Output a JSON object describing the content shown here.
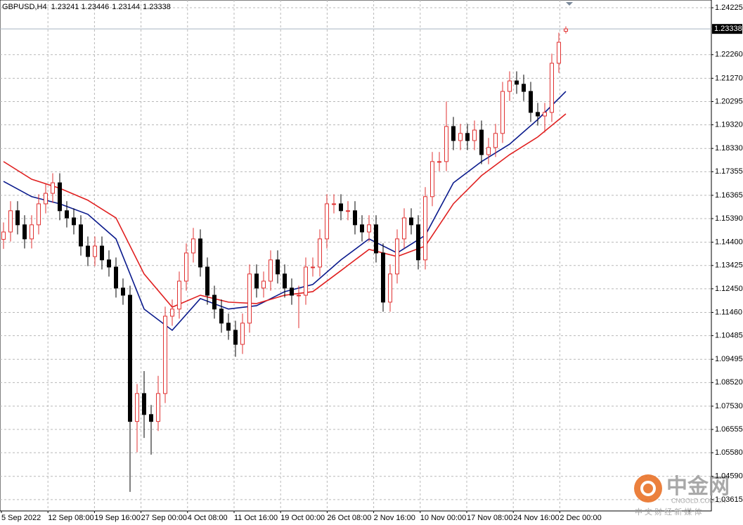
{
  "chart_data": {
    "type": "candlestick",
    "title": "GBPUSD,H4",
    "up_color": "#e03030",
    "down_color": "#000000",
    "grid": true,
    "ylim": [
      1.0314,
      1.2455
    ],
    "yticks": [
      1.24225,
      {
        "value": 1.2226,
        "label": "1.22260"
      },
      {
        "value": 1.2127,
        "label": "1.21270"
      },
      1.20295,
      {
        "value": 1.1932,
        "label": "1.19320"
      },
      {
        "value": 1.1833,
        "label": "1.18330"
      },
      1.17355,
      1.16365,
      {
        "value": 1.1539,
        "label": "1.15390"
      },
      {
        "value": 1.144,
        "label": "1.14400"
      },
      1.13425,
      {
        "value": 1.1245,
        "label": "1.12450"
      },
      {
        "value": 1.1146,
        "label": "1.11460"
      },
      1.10485,
      1.09495,
      {
        "value": 1.0852,
        "label": "1.08520"
      },
      {
        "value": 1.0753,
        "label": "1.07530"
      },
      1.06555,
      {
        "value": 1.0558,
        "label": "1.05580"
      },
      {
        "value": 1.0459,
        "label": "1.04590"
      },
      1.03615
    ],
    "x_labels": [
      "5 Sep 2022",
      "12 Sep 08:00",
      "19 Sep 16:00",
      "27 Sep 00:00",
      "4 Oct 08:00",
      "11 Oct 16:00",
      "19 Oct 00:00",
      "26 Oct 08:00",
      "2 Nov 16:00",
      "10 Nov 00:00",
      "17 Nov 08:00",
      "24 Nov 16:00",
      "2 Dec 00:00"
    ],
    "current_price": 1.23338,
    "open": [
      1.1452,
      1.1483,
      1.1572,
      1.1513,
      1.1454,
      1.1513,
      1.1601,
      1.1645,
      1.1689,
      1.1572,
      1.1542,
      1.1513,
      1.1424,
      1.138,
      1.1424,
      1.1366,
      1.1336,
      1.1248,
      1.1218,
      1.0689,
      1.0806,
      1.0718,
      1.0689,
      1.0806,
      1.113,
      1.116,
      1.1277,
      1.1395,
      1.1454,
      1.1336,
      1.1218,
      1.116,
      1.1101,
      1.1071,
      1.1012,
      1.1101,
      1.1307,
      1.1248,
      1.1277,
      1.1366,
      1.1307,
      1.1248,
      1.1218,
      1.1218,
      1.1336,
      1.1336,
      1.1454,
      1.1601,
      1.1601,
      1.1572,
      1.1572,
      1.1513,
      1.1483,
      1.1513,
      1.1395,
      1.1189,
      1.1307,
      1.1454,
      1.1542,
      1.1513,
      1.1366,
      1.1631,
      1.1778,
      1.1778,
      1.1925,
      1.1866,
      1.1896,
      1.1866,
      1.191,
      1.1807,
      1.1837,
      1.1896,
      1.2072,
      1.2116,
      1.2102,
      1.2072,
      1.1984,
      1.1969,
      1.1984,
      1.219,
      1.23241
    ],
    "high": [
      1.1523,
      1.1612,
      1.1612,
      1.1553,
      1.1553,
      1.1641,
      1.1685,
      1.1729,
      1.1729,
      1.1612,
      1.1582,
      1.1553,
      1.1464,
      1.1464,
      1.1464,
      1.1406,
      1.1376,
      1.1288,
      1.1258,
      1.0846,
      1.09,
      1.0758,
      1.088,
      1.117,
      1.12,
      1.1317,
      1.1435,
      1.15,
      1.1494,
      1.1376,
      1.1258,
      1.12,
      1.1141,
      1.1111,
      1.1141,
      1.1347,
      1.1347,
      1.1317,
      1.1406,
      1.1406,
      1.1347,
      1.1288,
      1.1258,
      1.1376,
      1.1376,
      1.1494,
      1.1641,
      1.1641,
      1.1641,
      1.1612,
      1.1612,
      1.1553,
      1.1553,
      1.1553,
      1.1435,
      1.1347,
      1.1494,
      1.1582,
      1.1582,
      1.1553,
      1.1671,
      1.1818,
      1.1818,
      1.203,
      1.1965,
      1.1936,
      1.1936,
      1.195,
      1.195,
      1.1877,
      1.1936,
      1.2112,
      1.2156,
      1.2156,
      1.2142,
      1.2112,
      1.2024,
      1.2024,
      1.223,
      1.2318,
      1.23446
    ],
    "low": [
      1.1412,
      1.1443,
      1.1473,
      1.1414,
      1.1414,
      1.1473,
      1.1561,
      1.1605,
      1.1532,
      1.1502,
      1.1473,
      1.1384,
      1.134,
      1.134,
      1.1326,
      1.1296,
      1.1208,
      1.1178,
      1.0394,
      1.056,
      1.062,
      1.055,
      1.0649,
      1.0766,
      1.109,
      1.112,
      1.1237,
      1.1355,
      1.1296,
      1.1178,
      1.112,
      1.1061,
      1.1031,
      1.096,
      1.0972,
      1.1061,
      1.1208,
      1.1208,
      1.1237,
      1.1267,
      1.1208,
      1.1178,
      1.108,
      1.1178,
      1.1296,
      1.1296,
      1.1414,
      1.1561,
      1.1532,
      1.1532,
      1.1473,
      1.1443,
      1.1443,
      1.1355,
      1.1149,
      1.1149,
      1.1267,
      1.1414,
      1.1473,
      1.1326,
      1.1326,
      1.1591,
      1.1738,
      1.1738,
      1.1826,
      1.1826,
      1.1826,
      1.1826,
      1.1767,
      1.1767,
      1.1797,
      1.1856,
      1.2032,
      1.2062,
      1.2032,
      1.1944,
      1.1929,
      1.19,
      1.1944,
      1.215,
      1.23144
    ],
    "close": [
      1.1483,
      1.1572,
      1.1513,
      1.1454,
      1.1513,
      1.1601,
      1.1645,
      1.1689,
      1.1572,
      1.1542,
      1.1513,
      1.1424,
      1.138,
      1.1424,
      1.1366,
      1.1336,
      1.1248,
      1.1218,
      1.0689,
      1.0806,
      1.0718,
      1.0689,
      1.0806,
      1.113,
      1.116,
      1.1277,
      1.1395,
      1.1454,
      1.1336,
      1.1218,
      1.116,
      1.1101,
      1.1071,
      1.1012,
      1.1101,
      1.1307,
      1.1248,
      1.1277,
      1.1366,
      1.1307,
      1.1248,
      1.1218,
      1.1218,
      1.1336,
      1.1336,
      1.1454,
      1.1601,
      1.1601,
      1.1572,
      1.1572,
      1.1513,
      1.1483,
      1.1513,
      1.1395,
      1.1189,
      1.1307,
      1.1454,
      1.1542,
      1.1513,
      1.1366,
      1.1631,
      1.1778,
      1.1778,
      1.1925,
      1.1866,
      1.1896,
      1.1866,
      1.191,
      1.1807,
      1.1837,
      1.1896,
      1.2072,
      1.2116,
      1.2102,
      1.2072,
      1.1984,
      1.1969,
      1.1984,
      1.219,
      1.2278,
      1.23338
    ],
    "ma_x": [
      0,
      4,
      8,
      12,
      16,
      20,
      24,
      28,
      32,
      36,
      40,
      44,
      48,
      52,
      56,
      60,
      64,
      68,
      72,
      76,
      80
    ],
    "series": [
      {
        "color": "#0a1a8c",
        "values": [
          1.1695,
          1.1631,
          1.1601,
          1.1557,
          1.1454,
          1.116,
          1.1071,
          1.1204,
          1.116,
          1.1174,
          1.1233,
          1.1263,
          1.1366,
          1.1454,
          1.1395,
          1.1469,
          1.1689,
          1.1778,
          1.1851,
          1.1954,
          1.2072
        ]
      },
      {
        "color": "#e02020",
        "values": [
          1.1778,
          1.1704,
          1.1666,
          1.1616,
          1.1542,
          1.1307,
          1.1168,
          1.1218,
          1.1189,
          1.1183,
          1.1218,
          1.1233,
          1.1321,
          1.141,
          1.138,
          1.1424,
          1.1601,
          1.1719,
          1.1807,
          1.1881,
          1.1978
        ]
      }
    ]
  },
  "watermark": {
    "brand": "中金网",
    "site": "CNGOLD.COM.CN",
    "tagline": "中 文 财 经 新 媒 体"
  }
}
